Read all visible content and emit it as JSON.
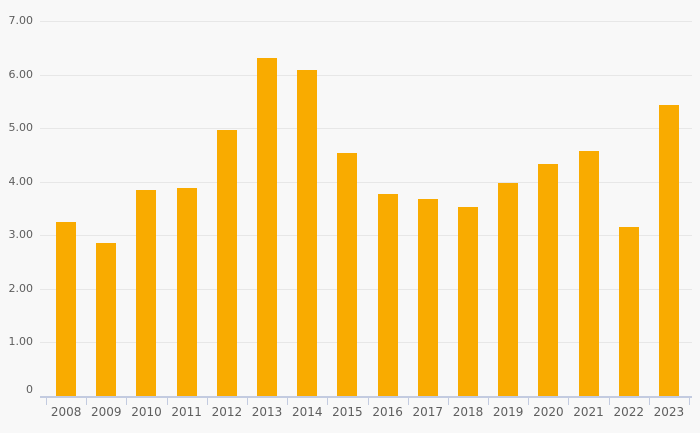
{
  "chart_data": {
    "type": "bar",
    "title": "",
    "xlabel": "",
    "ylabel": "",
    "categories": [
      "2008",
      "2009",
      "2010",
      "2011",
      "2012",
      "2013",
      "2014",
      "2015",
      "2016",
      "2017",
      "2018",
      "2019",
      "2020",
      "2021",
      "2022",
      "2023"
    ],
    "values": [
      3.25,
      2.85,
      3.85,
      3.88,
      4.97,
      6.31,
      6.09,
      4.53,
      3.77,
      3.67,
      3.52,
      3.98,
      4.34,
      4.57,
      3.15,
      5.43
    ],
    "ylim": [
      0,
      7
    ],
    "y_ticks": [
      "7.00",
      "6.00",
      "5.00",
      "4.00",
      "3.00",
      "2.00",
      "1.00",
      "0"
    ],
    "y_tick_values": [
      7,
      6,
      5,
      4,
      3,
      2,
      1,
      0
    ],
    "grid": true,
    "legend": false,
    "colors": {
      "bar": "#F9AB00",
      "background": "#F8F8F8",
      "gridline": "#E7E7E7",
      "axis": "#C3CBE0",
      "label": "#5E5E5E"
    }
  }
}
